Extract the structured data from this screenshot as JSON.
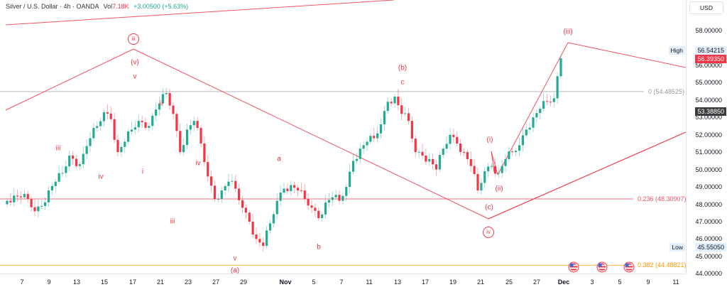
{
  "header": {
    "symbol": "Silver / U.S. Dollar · 4h · OANDA",
    "vol_label": "Vol",
    "vol_value": "7.18K",
    "change": "+3.00500 (+5.63%)"
  },
  "price_axis": {
    "currency": "USD",
    "ticks": [
      "58.00000",
      "56.00000",
      "55.00000",
      "54.00000",
      "53.00000",
      "52.00000",
      "51.00000",
      "50.00000",
      "49.00000",
      "48.00000",
      "47.00000",
      "46.00000",
      "45.00000",
      "44.00000"
    ],
    "high_label": "High",
    "high_value": "56.54215",
    "last_price": "56.39350",
    "close_marker": "53.38850",
    "low_label": "Low",
    "low_value": "45.55050"
  },
  "time_axis": {
    "labels": [
      "7",
      "9",
      "13",
      "15",
      "17",
      "21",
      "23",
      "27",
      "29",
      "Nov",
      "5",
      "7",
      "11",
      "13",
      "17",
      "19",
      "21",
      "25",
      "27",
      "Dec",
      "3",
      "5",
      "9",
      "11"
    ]
  },
  "fib_levels": [
    {
      "label": "0 (54.48525)",
      "price": 54.48525,
      "color": "#9598a1"
    },
    {
      "label": "0.236 (48.30907)",
      "price": 48.30907,
      "color": "#f7525f"
    },
    {
      "label": "0.382 (44.48821)",
      "price": 44.48821,
      "color": "#ff9800"
    }
  ],
  "wave_labels": [
    {
      "text": "iii",
      "circled": true
    },
    {
      "text": "(v)"
    },
    {
      "text": "v"
    },
    {
      "text": "ii"
    },
    {
      "text": "iii"
    },
    {
      "text": "iv"
    },
    {
      "text": "i"
    },
    {
      "text": "iv"
    },
    {
      "text": "iii"
    },
    {
      "text": "v"
    },
    {
      "text": "(a)"
    },
    {
      "text": "a"
    },
    {
      "text": "b"
    },
    {
      "text": "(b)"
    },
    {
      "text": "c"
    },
    {
      "text": "(i)"
    },
    {
      "text": "(ii)"
    },
    {
      "text": "(c)"
    },
    {
      "text": "iv",
      "circled": true
    },
    {
      "text": "(iii)"
    }
  ],
  "colors": {
    "up": "#22ab94",
    "down": "#f23645",
    "wave_line": "#f23645",
    "fib0": "#9598a1",
    "fib236": "#f7525f",
    "fib382": "#ff9800"
  },
  "chart_data": {
    "type": "candlestick",
    "title": "Silver / U.S. Dollar · 4h · OANDA",
    "xlabel": "",
    "ylabel": "USD",
    "ylim": [
      44.0,
      58.5
    ],
    "x_ticks": [
      "7",
      "9",
      "13",
      "15",
      "17",
      "21",
      "23",
      "27",
      "29",
      "Nov",
      "5",
      "7",
      "11",
      "13",
      "17",
      "19",
      "21",
      "25",
      "27",
      "Dec",
      "3",
      "5",
      "9",
      "11"
    ],
    "y_ticks": [
      44,
      45,
      46,
      47,
      48,
      49,
      50,
      51,
      52,
      53,
      54,
      55,
      56,
      58
    ],
    "key_prices": {
      "high": 56.54215,
      "low": 45.5505,
      "last": 56.3935,
      "previous_marker": 53.3885,
      "change": 3.005,
      "change_pct": 5.63,
      "volume": "7.18K"
    },
    "fibonacci": [
      {
        "ratio": 0,
        "price": 54.48525
      },
      {
        "ratio": 0.236,
        "price": 48.30907
      },
      {
        "ratio": 0.382,
        "price": 44.48821
      }
    ],
    "elliott_wave_points": [
      {
        "label": "iii (circled) / (v)",
        "date": "Oct 17",
        "price": 54.49
      },
      {
        "label": "(a)",
        "date": "Oct 28",
        "price": 45.55
      },
      {
        "label": "(b)",
        "date": "Nov 13",
        "price": 54.4
      },
      {
        "label": "(c)",
        "date": "Nov 21",
        "price": 48.5
      },
      {
        "label": "iv (circled)",
        "date": "Nov 21",
        "price": 47.1
      },
      {
        "label": "(i)",
        "date": "Nov 22",
        "price": 51.1
      },
      {
        "label": "(ii)",
        "date": "Nov 23",
        "price": 49.6
      },
      {
        "label": "(iii)",
        "date": "Dec 1",
        "price": 57.1
      }
    ],
    "approx_closes": [
      48.2,
      48.5,
      48.4,
      48.3,
      47.6,
      47.9,
      48.8,
      49.3,
      49.8,
      50.8,
      50.2,
      50.9,
      51.8,
      52.5,
      53.3,
      52.9,
      51.0,
      51.6,
      52.3,
      52.8,
      52.4,
      53.1,
      53.8,
      54.4,
      53.2,
      51.0,
      52.3,
      52.8,
      51.5,
      49.6,
      48.3,
      48.8,
      49.3,
      48.9,
      47.8,
      47.0,
      46.0,
      45.6,
      46.9,
      48.2,
      48.9,
      49.1,
      48.8,
      48.3,
      47.8,
      47.2,
      48.1,
      48.4,
      48.2,
      49.0,
      50.5,
      51.2,
      51.6,
      51.8,
      52.6,
      53.9,
      54.2,
      53.2,
      52.8,
      51.0,
      50.8,
      50.6,
      50.0,
      51.2,
      52.0,
      51.5,
      51.0,
      50.2,
      48.8,
      49.9,
      50.2,
      49.8,
      50.6,
      51.0,
      51.4,
      52.3,
      53.0,
      53.5,
      53.9,
      54.1,
      56.4
    ]
  }
}
